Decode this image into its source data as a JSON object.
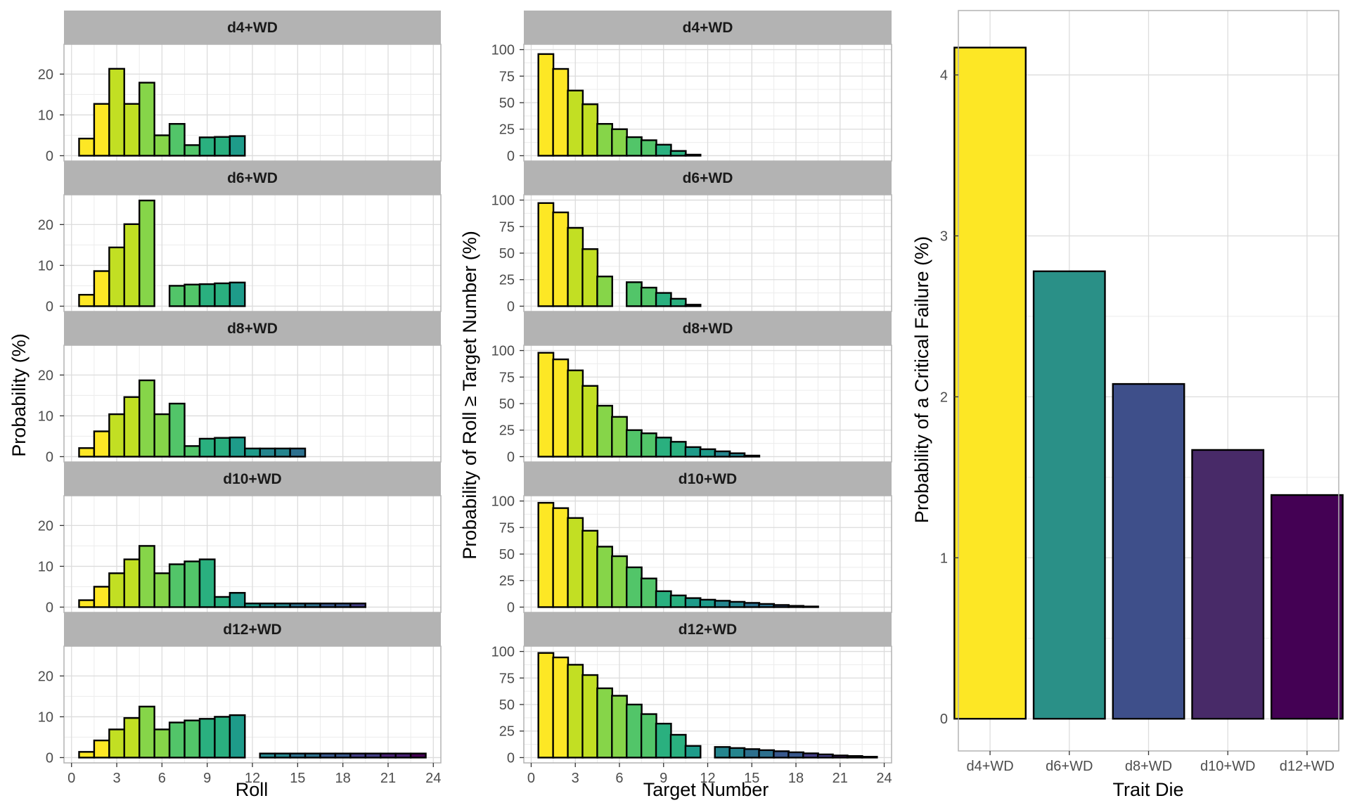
{
  "colors": {
    "d4+WD": "#fde725",
    "d6+WD": "#2a9087",
    "d8+WD": "#3e4f8a",
    "d10+WD": "#482a68",
    "d12+WD": "#440154",
    "ramp": [
      "#fde725",
      "#c2df23",
      "#86d549",
      "#52c569",
      "#2ab07f",
      "#1e9b8a",
      "#25858e",
      "#2d708e",
      "#38588c",
      "#433e85",
      "#482173",
      "#440154"
    ],
    "strip": "#b3b3b3",
    "grid": "#dcdcdc",
    "panel_border": "#b3b3b3",
    "bar_outline": "#000000"
  },
  "chart_data": [
    {
      "type": "bar",
      "layout": "faceted",
      "xlabel": "Roll",
      "ylabel": "Probability (%)",
      "xlim": [
        -0.5,
        24.5
      ],
      "ylim": [
        0,
        26
      ],
      "x_ticks": [
        0,
        3,
        6,
        9,
        12,
        15,
        18,
        21,
        24
      ],
      "y_ticks": [
        0,
        10,
        20
      ],
      "facets": [
        {
          "label": "d4+WD",
          "x": [
            1,
            2,
            3,
            4,
            5,
            6,
            7,
            8,
            9,
            10,
            11
          ],
          "values": [
            4.2,
            12.7,
            21.3,
            12.7,
            17.9,
            5.0,
            7.8,
            2.6,
            4.5,
            4.6,
            4.8
          ]
        },
        {
          "label": "d6+WD",
          "x": [
            1,
            2,
            3,
            4,
            5,
            7,
            8,
            9,
            10,
            11
          ],
          "values": [
            2.8,
            8.6,
            14.4,
            20.1,
            25.9,
            5.0,
            5.3,
            5.4,
            5.6,
            5.8
          ]
        },
        {
          "label": "d8+WD",
          "x": [
            1,
            2,
            3,
            4,
            5,
            6,
            7,
            8,
            9,
            10,
            11,
            12,
            13,
            14,
            15
          ],
          "values": [
            2.1,
            6.2,
            10.4,
            14.6,
            18.7,
            10.4,
            13.0,
            2.6,
            4.4,
            4.6,
            4.7,
            2.0,
            2.0,
            2.0,
            2.0
          ]
        },
        {
          "label": "d10+WD",
          "x": [
            1,
            2,
            3,
            4,
            5,
            6,
            7,
            8,
            9,
            10,
            11,
            12,
            13,
            14,
            15,
            16,
            17,
            18,
            19
          ],
          "values": [
            1.7,
            5.0,
            8.3,
            11.7,
            15.0,
            8.3,
            10.5,
            11.2,
            11.7,
            2.5,
            3.5,
            0.9,
            0.9,
            0.9,
            0.9,
            0.9,
            0.9,
            0.9,
            0.9
          ]
        },
        {
          "label": "d12+WD",
          "x": [
            1,
            2,
            3,
            4,
            5,
            6,
            7,
            8,
            9,
            10,
            11,
            13,
            14,
            15,
            16,
            17,
            18,
            19,
            20,
            21,
            22,
            23
          ],
          "values": [
            1.4,
            4.2,
            6.9,
            9.7,
            12.5,
            6.9,
            8.6,
            9.1,
            9.5,
            10.0,
            10.4,
            1.0,
            1.0,
            1.0,
            1.0,
            1.0,
            1.0,
            1.0,
            1.0,
            1.0,
            1.0,
            1.0
          ]
        }
      ]
    },
    {
      "type": "bar",
      "layout": "faceted",
      "xlabel": "Target Number",
      "ylabel": "Probability of Roll ≥ Target Number (%)",
      "xlim": [
        -0.5,
        24.5
      ],
      "ylim": [
        0,
        100
      ],
      "x_ticks": [
        0,
        3,
        6,
        9,
        12,
        15,
        18,
        21,
        24
      ],
      "y_ticks": [
        0,
        25,
        50,
        75,
        100
      ],
      "facets": [
        {
          "label": "d4+WD",
          "x": [
            1,
            2,
            3,
            4,
            5,
            6,
            7,
            8,
            9,
            10,
            11
          ],
          "values": [
            95.8,
            81.8,
            61.4,
            48.5,
            30.0,
            25.0,
            17.5,
            14.6,
            10.4,
            4.5,
            1.0
          ]
        },
        {
          "label": "d6+WD",
          "x": [
            1,
            2,
            3,
            4,
            5,
            7,
            8,
            9,
            10,
            11
          ],
          "values": [
            97.2,
            88.4,
            73.8,
            53.8,
            28.0,
            22.6,
            17.5,
            12.5,
            7.0,
            1.4
          ]
        },
        {
          "label": "d8+WD",
          "x": [
            1,
            2,
            3,
            4,
            5,
            6,
            7,
            8,
            9,
            10,
            11,
            12,
            13,
            14,
            15
          ],
          "values": [
            97.9,
            91.7,
            81.3,
            66.7,
            48.0,
            37.5,
            25.0,
            22.0,
            18.0,
            14.0,
            9.0,
            7.0,
            5.0,
            3.2,
            1.0
          ]
        },
        {
          "label": "d10+WD",
          "x": [
            1,
            2,
            3,
            4,
            5,
            6,
            7,
            8,
            9,
            10,
            11,
            12,
            13,
            14,
            15,
            16,
            17,
            18,
            19
          ],
          "values": [
            98.3,
            93.3,
            84.0,
            72.0,
            57.0,
            48.0,
            37.5,
            27.0,
            15.0,
            11.0,
            8.5,
            7.0,
            6.0,
            5.0,
            4.0,
            3.0,
            2.0,
            1.2,
            0.6
          ]
        },
        {
          "label": "d12+WD",
          "x": [
            1,
            2,
            3,
            4,
            5,
            6,
            7,
            8,
            9,
            10,
            11,
            13,
            14,
            15,
            16,
            17,
            18,
            19,
            20,
            21,
            22,
            23
          ],
          "values": [
            98.6,
            94.4,
            87.5,
            77.8,
            65.3,
            58.3,
            50.0,
            41.0,
            32.0,
            21.5,
            11.0,
            10.0,
            9.0,
            8.0,
            7.0,
            6.0,
            5.0,
            4.0,
            3.0,
            2.0,
            1.5,
            0.8
          ]
        }
      ]
    },
    {
      "type": "bar",
      "xlabel": "Trait Die",
      "ylabel": "Probability of a Critical Failure (%)",
      "categories": [
        "d4+WD",
        "d6+WD",
        "d8+WD",
        "d10+WD",
        "d12+WD"
      ],
      "values": [
        4.17,
        2.78,
        2.08,
        1.67,
        1.39
      ],
      "ylim": [
        -0.2,
        4.4
      ],
      "y_ticks": [
        0,
        1,
        2,
        3,
        4
      ]
    }
  ]
}
